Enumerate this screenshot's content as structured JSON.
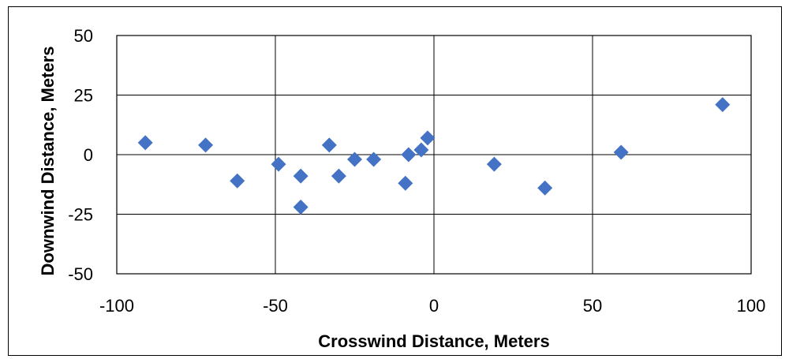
{
  "chart_data": {
    "type": "scatter",
    "title": "",
    "xlabel": "Crosswind Distance, Meters",
    "ylabel": "Downwind Distance, Meters",
    "xlim": [
      -100,
      100
    ],
    "ylim": [
      -50,
      50
    ],
    "x_ticks": [
      -100,
      -50,
      0,
      50,
      100
    ],
    "y_ticks": [
      -50,
      -25,
      0,
      25,
      50
    ],
    "grid": true,
    "legend": "none",
    "marker_color": "#4472C4",
    "marker_shape": "diamond",
    "points": [
      {
        "x": -91,
        "y": 5
      },
      {
        "x": -72,
        "y": 4
      },
      {
        "x": -62,
        "y": -11
      },
      {
        "x": -49,
        "y": -4
      },
      {
        "x": -42,
        "y": -22
      },
      {
        "x": -42,
        "y": -9
      },
      {
        "x": -33,
        "y": 4
      },
      {
        "x": -30,
        "y": -9
      },
      {
        "x": -25,
        "y": -2
      },
      {
        "x": -19,
        "y": -2
      },
      {
        "x": -9,
        "y": -12
      },
      {
        "x": -8,
        "y": 0
      },
      {
        "x": -4,
        "y": 2
      },
      {
        "x": -2,
        "y": 7
      },
      {
        "x": 19,
        "y": -4
      },
      {
        "x": 35,
        "y": -14
      },
      {
        "x": 59,
        "y": 1
      },
      {
        "x": 91,
        "y": 21
      }
    ]
  }
}
